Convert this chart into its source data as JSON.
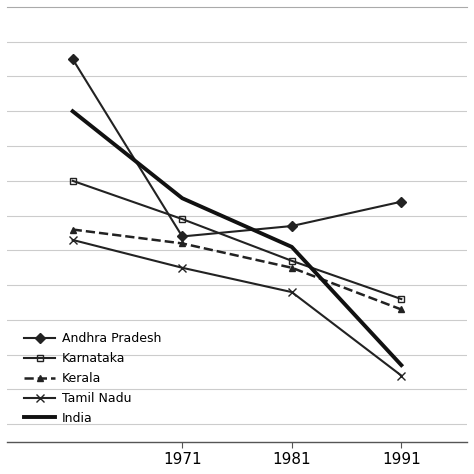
{
  "years": [
    1961,
    1971,
    1981,
    1991
  ],
  "series": {
    "Andhra Pradesh": {
      "values": [
        1015,
        964,
        967,
        974
      ],
      "marker": "D",
      "linestyle": "-",
      "linewidth": 1.5,
      "color": "#222222",
      "markersize": 5,
      "fillstyle": "full"
    },
    "Karnataka": {
      "values": [
        980,
        969,
        957,
        946
      ],
      "marker": "s",
      "linestyle": "-",
      "linewidth": 1.5,
      "color": "#222222",
      "markersize": 5,
      "fillstyle": "none"
    },
    "Kerala": {
      "values": [
        966,
        962,
        955,
        943
      ],
      "marker": "^",
      "linestyle": "--",
      "linewidth": 1.8,
      "color": "#222222",
      "markersize": 5,
      "fillstyle": "full"
    },
    "Tamil Nadu": {
      "values": [
        963,
        955,
        948,
        924
      ],
      "marker": "x",
      "linestyle": "-",
      "linewidth": 1.5,
      "color": "#222222",
      "markersize": 6,
      "fillstyle": "full"
    },
    "India": {
      "values": [
        1000,
        975,
        961,
        927
      ],
      "marker": null,
      "linestyle": "-",
      "linewidth": 2.8,
      "color": "#111111",
      "markersize": 0,
      "fillstyle": "full"
    }
  },
  "xlim": [
    1955,
    1997
  ],
  "xticks": [
    1971,
    1981,
    1991
  ],
  "ylim": [
    905,
    1030
  ],
  "yticks_positions": [
    910,
    920,
    930,
    940,
    950,
    960,
    970,
    980,
    990,
    1000,
    1010,
    1020
  ],
  "background_color": "#ffffff",
  "grid_color": "#cccccc",
  "legend_order": [
    "Andhra Pradesh",
    "Karnataka",
    "Kerala",
    "Tamil Nadu",
    "India"
  ]
}
